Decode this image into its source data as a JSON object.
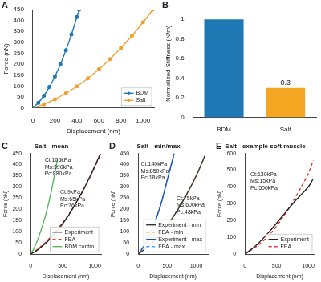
{
  "chart_data": [
    {
      "panel": "A",
      "type": "line",
      "x_label": "Displacement (nm)",
      "y_label": "Force (nN)",
      "xlim": [
        0,
        1100
      ],
      "xticks": [
        0,
        200,
        400,
        600,
        800,
        1000
      ],
      "ylim": [
        0,
        450
      ],
      "yticks": [
        0,
        50,
        100,
        150,
        200,
        250,
        300,
        350,
        400,
        450
      ],
      "grid": false,
      "legend": "lower right",
      "series": [
        {
          "name": "BDM",
          "color": "#1f77b4",
          "marker": "circle",
          "line_style": "solid",
          "x": [
            0,
            50,
            100,
            150,
            200,
            250,
            300,
            350,
            400,
            420
          ],
          "values": [
            0,
            24,
            56,
            96,
            144,
            200,
            264,
            336,
            416,
            450
          ]
        },
        {
          "name": "Salt",
          "color": "#f0a030",
          "marker": "circle",
          "line_style": "solid",
          "x": [
            0,
            100,
            200,
            300,
            400,
            500,
            600,
            700,
            800,
            900,
            1000,
            1090
          ],
          "values": [
            0,
            17,
            40,
            67,
            99,
            136,
            177,
            224,
            275,
            331,
            392,
            450
          ]
        }
      ]
    },
    {
      "panel": "B",
      "type": "bar",
      "y_label": "Normalized Stiffness (N/m)",
      "categories": [
        "BDM",
        "Salt"
      ],
      "values": [
        1,
        0.3
      ],
      "colors": [
        "#1f77b4",
        "#f5a623"
      ],
      "value_labels": [
        null,
        "0.3"
      ],
      "ylim": [
        0,
        1.1
      ],
      "yticks": [
        0,
        0.2,
        0.4,
        0.6,
        0.8,
        1
      ],
      "grid": false
    },
    {
      "panel": "C",
      "type": "line",
      "title": "Salt - mean",
      "x_label": "Displacement (nm)",
      "y_label": "Force (nN)",
      "xlim": [
        0,
        1100
      ],
      "xticks": [
        0,
        500,
        1000
      ],
      "ylim": [
        0,
        450
      ],
      "yticks": [
        0,
        50,
        100,
        150,
        200,
        250,
        300,
        350,
        400,
        450
      ],
      "grid": false,
      "legend": "lower right",
      "annotations": [
        [
          "Ct:105kPa",
          "Ms:390kPa",
          "Pc:880kPa"
        ],
        [
          "Ct:9kPa",
          "Ms:65kPa",
          "Pc:76kPa"
        ]
      ],
      "series": [
        {
          "name": "Experiment",
          "color": "#222222",
          "line_style": "solid",
          "x": [
            0,
            100,
            200,
            300,
            400,
            500,
            600,
            700,
            800,
            900,
            1000,
            1090
          ],
          "values": [
            0,
            17,
            40,
            67,
            99,
            136,
            177,
            224,
            275,
            331,
            392,
            450
          ]
        },
        {
          "name": "FEA",
          "color": "#e03a2f",
          "line_style": "dashed",
          "x": [
            0,
            100,
            200,
            300,
            400,
            500,
            600,
            700,
            800,
            900,
            1000,
            1090
          ],
          "values": [
            0,
            20,
            44,
            72,
            104,
            140,
            180,
            225,
            274,
            328,
            388,
            445
          ]
        },
        {
          "name": "BDM control",
          "color": "#5cb85c",
          "line_style": "solid",
          "x": [
            0,
            50,
            100,
            150,
            200,
            250,
            300,
            350,
            400,
            420
          ],
          "values": [
            0,
            24,
            56,
            96,
            140,
            190,
            250,
            318,
            395,
            425
          ]
        }
      ]
    },
    {
      "panel": "D",
      "type": "line",
      "title": "Salt - min/max",
      "x_label": "Displacement (nm)",
      "y_label": "Force (nN)",
      "xlim": [
        0,
        1200
      ],
      "xticks": [
        0,
        500,
        1000
      ],
      "ylim": [
        0,
        450
      ],
      "yticks": [
        0,
        50,
        100,
        150,
        200,
        250,
        300,
        350,
        400,
        450
      ],
      "grid": false,
      "legend": "lower right",
      "annotations": [
        [
          "Ct:140kPa",
          "Ms:850kPa",
          "Pc:18kPa"
        ],
        [
          "Ct:75kPa",
          "Ms:600kPa",
          "Pc:48kPa"
        ]
      ],
      "series": [
        {
          "name": "Experiment - min",
          "color": "#333333",
          "line_style": "solid",
          "x": [
            0,
            200,
            400,
            600,
            800,
            1000,
            1150
          ],
          "values": [
            0,
            40,
            95,
            165,
            250,
            350,
            440
          ]
        },
        {
          "name": "FEA - min",
          "color": "#f0a030",
          "line_style": "dashed",
          "x": [
            0,
            200,
            400,
            600,
            800,
            1000,
            1150
          ],
          "values": [
            0,
            42,
            98,
            168,
            252,
            350,
            436
          ]
        },
        {
          "name": "Experiment - max",
          "color": "#1f4fbf",
          "line_style": "solid",
          "x": [
            0,
            100,
            200,
            300,
            400,
            500,
            620
          ],
          "values": [
            0,
            35,
            85,
            150,
            230,
            330,
            450
          ]
        },
        {
          "name": "FEA - max",
          "color": "#3fa9f5",
          "line_style": "dashed",
          "x": [
            0,
            100,
            200,
            300,
            400,
            500,
            620
          ],
          "values": [
            0,
            38,
            88,
            152,
            230,
            328,
            445
          ]
        }
      ]
    },
    {
      "panel": "E",
      "type": "line",
      "title": "Salt - example soft muscle",
      "x_label": "Displacement (nm)",
      "y_label": "Force (nN)",
      "xlim": [
        0,
        1100
      ],
      "xticks": [
        0,
        500,
        1000
      ],
      "ylim": [
        0,
        600
      ],
      "yticks": [
        0,
        100,
        200,
        300,
        400,
        500,
        600
      ],
      "grid": false,
      "legend": "lower right",
      "annotations": [
        [
          "Ct:130kPa",
          "Ms:15kPa",
          "Pc:500kPa"
        ]
      ],
      "series": [
        {
          "name": "Experiment",
          "color": "#222222",
          "line_style": "solid",
          "x": [
            0,
            200,
            400,
            600,
            800,
            1000,
            1080
          ],
          "values": [
            0,
            60,
            140,
            230,
            320,
            400,
            450
          ]
        },
        {
          "name": "FEA",
          "color": "#e03a2f",
          "line_style": "dashed",
          "x": [
            0,
            200,
            400,
            600,
            800,
            1000,
            1080
          ],
          "values": [
            0,
            50,
            120,
            220,
            340,
            480,
            560
          ]
        }
      ]
    }
  ]
}
